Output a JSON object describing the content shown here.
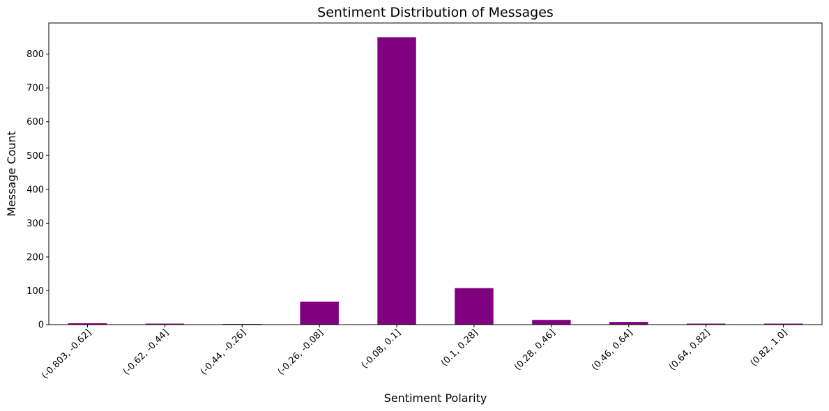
{
  "chart_data": {
    "type": "bar",
    "title": "Sentiment Distribution of Messages",
    "xlabel": "Sentiment Polarity",
    "ylabel": "Message Count",
    "categories": [
      "(-0.803, -0.62]",
      "(-0.62, -0.44]",
      "(-0.44, -0.26]",
      "(-0.26, -0.08]",
      "(-0.08, 0.1]",
      "(0.1, 0.28]",
      "(0.28, 0.46]",
      "(0.46, 0.64]",
      "(0.64, 0.82]",
      "(0.82, 1.0]"
    ],
    "values": [
      4,
      3,
      2,
      68,
      850,
      108,
      14,
      8,
      3,
      3
    ],
    "yticks": [
      0,
      100,
      200,
      300,
      400,
      500,
      600,
      700,
      800
    ],
    "ylim": [
      0,
      892
    ],
    "bar_color": "#800080",
    "grid": false,
    "legend": "none"
  }
}
